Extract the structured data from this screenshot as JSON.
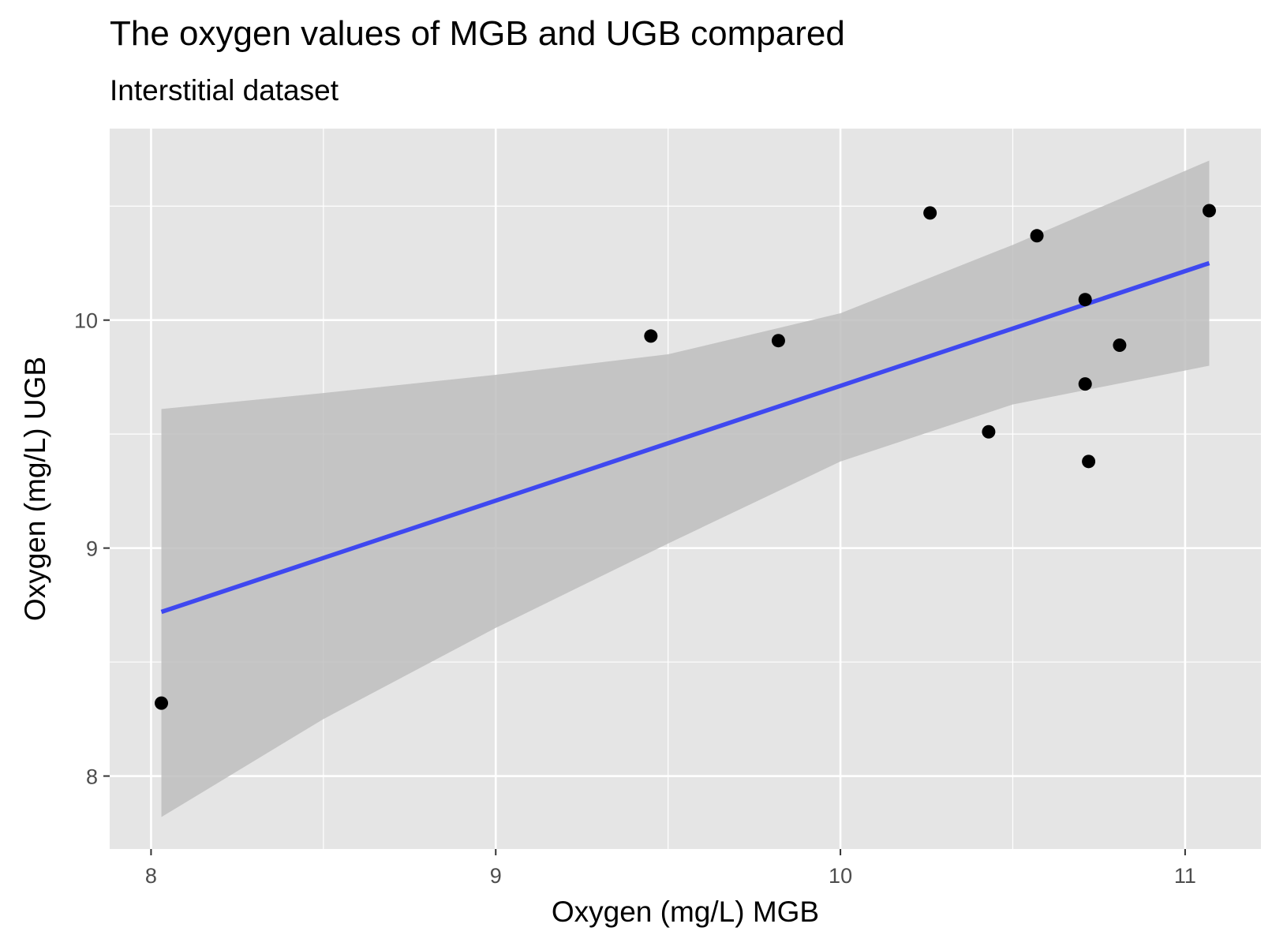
{
  "chart_data": {
    "type": "scatter",
    "title": "The oxygen values of MGB and UGB compared",
    "subtitle": "Interstitial dataset",
    "xlabel": "Oxygen (mg/L) MGB",
    "ylabel": "Oxygen (mg/L) UGB",
    "xlim": [
      7.88,
      11.22
    ],
    "ylim": [
      7.68,
      10.84
    ],
    "x_ticks": [
      8,
      9,
      10,
      11
    ],
    "y_ticks": [
      8,
      9,
      10
    ],
    "grid": true,
    "points": [
      {
        "x": 8.03,
        "y": 8.32
      },
      {
        "x": 9.45,
        "y": 9.93
      },
      {
        "x": 9.82,
        "y": 9.91
      },
      {
        "x": 10.26,
        "y": 10.47
      },
      {
        "x": 10.43,
        "y": 9.51
      },
      {
        "x": 10.57,
        "y": 10.37
      },
      {
        "x": 10.71,
        "y": 10.09
      },
      {
        "x": 10.71,
        "y": 9.72
      },
      {
        "x": 10.72,
        "y": 9.38
      },
      {
        "x": 10.81,
        "y": 9.89
      },
      {
        "x": 11.07,
        "y": 10.48
      }
    ],
    "trend_line": {
      "x": [
        8.03,
        11.07
      ],
      "y": [
        8.72,
        10.25
      ],
      "color": "#3f48f0"
    },
    "confidence_band": {
      "x": [
        8.03,
        8.5,
        9.0,
        9.5,
        10.0,
        10.5,
        11.07
      ],
      "lower": [
        7.82,
        8.25,
        8.65,
        9.02,
        9.38,
        9.63,
        9.8
      ],
      "upper": [
        9.61,
        9.68,
        9.76,
        9.85,
        10.03,
        10.33,
        10.7
      ]
    },
    "colors": {
      "panel_background": "#e5e5e5",
      "grid": "#ffffff",
      "point": "#000000",
      "band": "#bebebe",
      "line": "#3f48f0"
    }
  }
}
